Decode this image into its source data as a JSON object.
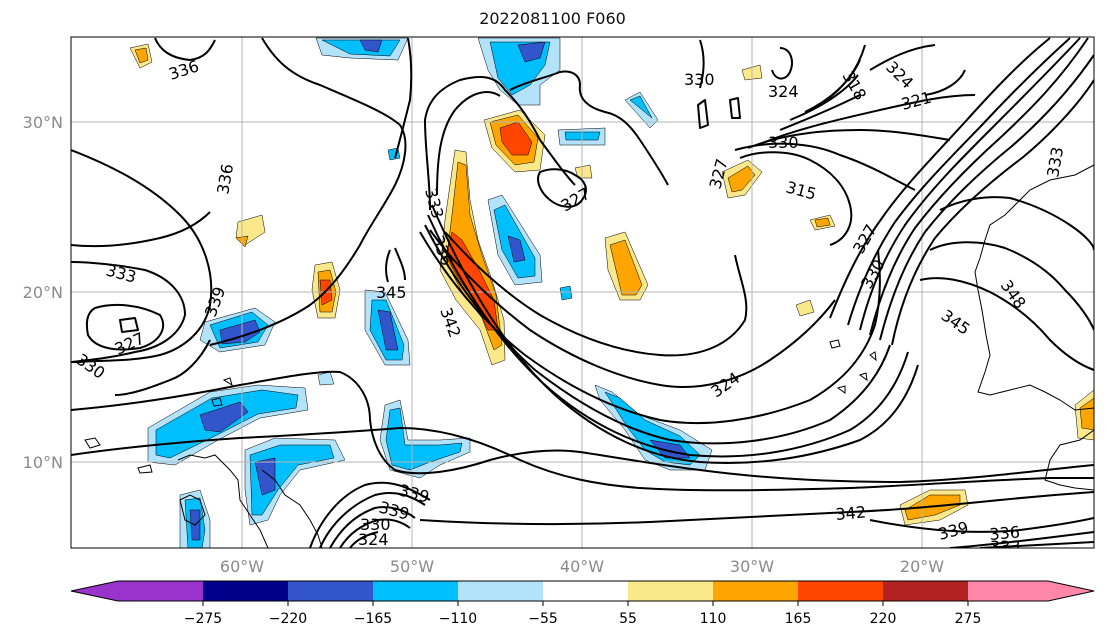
{
  "title": "2022081100 F060",
  "map": {
    "lat_labels": [
      "30°N",
      "20°N",
      "10°N"
    ],
    "lon_labels": [
      "60°W",
      "50°W",
      "40°W",
      "30°W",
      "20°W"
    ],
    "contour_labels": [
      "336",
      "336",
      "333",
      "339",
      "327",
      "330",
      "333",
      "336",
      "345",
      "342",
      "330",
      "327",
      "327",
      "324",
      "330",
      "318",
      "324",
      "321",
      "315",
      "327",
      "330",
      "324",
      "345",
      "348",
      "333",
      "342",
      "339",
      "336",
      "333",
      "339",
      "339",
      "330",
      "324"
    ],
    "contour_color": "#000000",
    "coastline_color": "#000000",
    "gridline_color": "#b5b5b5"
  },
  "colorbar": {
    "ticks": [
      "−275",
      "−220",
      "−165",
      "−110",
      "−55",
      "55",
      "110",
      "165",
      "220",
      "275"
    ],
    "colors": [
      "#9933cc",
      "#00008b",
      "#3355cc",
      "#00bfff",
      "#b3e3fa",
      "#ffffff",
      "#fbe88a",
      "#ffa500",
      "#ff4500",
      "#b22222",
      "#ff88aa"
    ]
  }
}
